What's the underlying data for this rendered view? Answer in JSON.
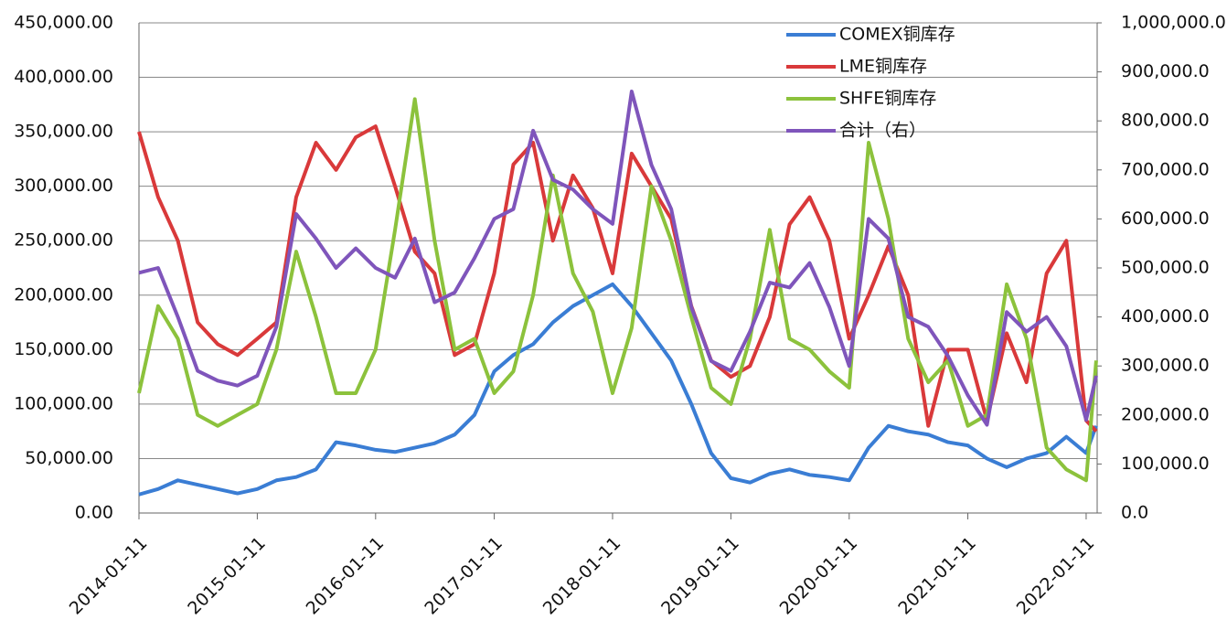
{
  "chart_data": {
    "type": "line",
    "x": [
      "2014-01-11",
      "2014-03-11",
      "2014-05-11",
      "2014-07-11",
      "2014-09-11",
      "2014-11-11",
      "2015-01-11",
      "2015-03-11",
      "2015-05-11",
      "2015-07-11",
      "2015-09-11",
      "2015-11-11",
      "2016-01-11",
      "2016-03-11",
      "2016-05-11",
      "2016-07-11",
      "2016-09-11",
      "2016-11-11",
      "2017-01-11",
      "2017-03-11",
      "2017-05-11",
      "2017-07-11",
      "2017-09-11",
      "2017-11-11",
      "2018-01-11",
      "2018-03-11",
      "2018-05-11",
      "2018-07-11",
      "2018-09-11",
      "2018-11-11",
      "2019-01-11",
      "2019-03-11",
      "2019-05-11",
      "2019-07-11",
      "2019-09-11",
      "2019-11-11",
      "2020-01-11",
      "2020-03-11",
      "2020-05-11",
      "2020-07-11",
      "2020-09-11",
      "2020-11-11",
      "2021-01-11",
      "2021-03-11",
      "2021-05-11",
      "2021-07-11",
      "2021-09-11",
      "2021-11-11",
      "2022-01-11",
      "2022-02-11"
    ],
    "series": [
      {
        "name": "COMEX铜库存",
        "color": "#3a7dd4",
        "values": [
          17000,
          22000,
          30000,
          26000,
          22000,
          18000,
          22000,
          30000,
          33000,
          40000,
          65000,
          62000,
          58000,
          56000,
          60000,
          64000,
          72000,
          90000,
          130000,
          145000,
          155000,
          175000,
          190000,
          200000,
          210000,
          190000,
          165000,
          140000,
          100000,
          55000,
          32000,
          28000,
          36000,
          40000,
          35000,
          33000,
          30000,
          60000,
          80000,
          75000,
          72000,
          65000,
          62000,
          50000,
          42000,
          50000,
          55000,
          70000,
          55000,
          80000
        ]
      },
      {
        "name": "LME铜库存",
        "color": "#d9393a",
        "values": [
          350000,
          290000,
          250000,
          175000,
          155000,
          145000,
          160000,
          175000,
          290000,
          340000,
          315000,
          345000,
          355000,
          300000,
          240000,
          220000,
          145000,
          155000,
          220000,
          320000,
          340000,
          250000,
          310000,
          280000,
          220000,
          330000,
          300000,
          270000,
          190000,
          140000,
          125000,
          135000,
          180000,
          265000,
          290000,
          250000,
          160000,
          200000,
          245000,
          200000,
          80000,
          150000,
          150000,
          85000,
          165000,
          120000,
          220000,
          250000,
          85000,
          75000
        ]
      },
      {
        "name": "SHFE铜库存",
        "color": "#8cc23c",
        "values": [
          110000,
          190000,
          160000,
          90000,
          80000,
          90000,
          100000,
          150000,
          240000,
          180000,
          110000,
          110000,
          150000,
          260000,
          380000,
          250000,
          150000,
          160000,
          110000,
          130000,
          200000,
          310000,
          220000,
          185000,
          110000,
          170000,
          300000,
          250000,
          180000,
          115000,
          100000,
          160000,
          260000,
          160000,
          150000,
          130000,
          115000,
          340000,
          270000,
          160000,
          120000,
          140000,
          80000,
          90000,
          210000,
          160000,
          60000,
          40000,
          30000,
          140000
        ]
      },
      {
        "name": "合计（右）",
        "color": "#7f55bb",
        "axis": "y2",
        "values": [
          490000,
          500000,
          400000,
          290000,
          270000,
          260000,
          280000,
          380000,
          610000,
          560000,
          500000,
          540000,
          500000,
          480000,
          560000,
          430000,
          450000,
          520000,
          600000,
          620000,
          780000,
          680000,
          660000,
          620000,
          590000,
          860000,
          710000,
          620000,
          420000,
          310000,
          290000,
          370000,
          470000,
          460000,
          510000,
          420000,
          300000,
          600000,
          560000,
          400000,
          380000,
          320000,
          240000,
          180000,
          410000,
          370000,
          400000,
          340000,
          190000,
          280000
        ]
      }
    ],
    "xlim": [
      "2014-01-11",
      "2022-02-14"
    ],
    "xticks": [
      "2014-01-11",
      "2015-01-11",
      "2016-01-11",
      "2017-01-11",
      "2018-01-11",
      "2019-01-11",
      "2020-01-11",
      "2021-01-11",
      "2022-01-11"
    ],
    "ylim": [
      0,
      450000
    ],
    "yticks": [
      {
        "value": 0,
        "label": "0.00"
      },
      {
        "value": 50000,
        "label": "50,000.00"
      },
      {
        "value": 100000,
        "label": "100,000.00"
      },
      {
        "value": 150000,
        "label": "150,000.00"
      },
      {
        "value": 200000,
        "label": "200,000.00"
      },
      {
        "value": 250000,
        "label": "250,000.00"
      },
      {
        "value": 300000,
        "label": "300,000.00"
      },
      {
        "value": 350000,
        "label": "350,000.00"
      },
      {
        "value": 400000,
        "label": "400,000.00"
      },
      {
        "value": 450000,
        "label": "450,000.00"
      }
    ],
    "y2lim": [
      0,
      1000000
    ],
    "y2ticks": [
      {
        "value": 0,
        "label": "0.0"
      },
      {
        "value": 100000,
        "label": "100,000.0"
      },
      {
        "value": 200000,
        "label": "200,000.0"
      },
      {
        "value": 300000,
        "label": "300,000.0"
      },
      {
        "value": 400000,
        "label": "400,000.0"
      },
      {
        "value": 500000,
        "label": "500,000.0"
      },
      {
        "value": 600000,
        "label": "600,000.0"
      },
      {
        "value": 700000,
        "label": "700,000.0"
      },
      {
        "value": 800000,
        "label": "800,000.0"
      },
      {
        "value": 900000,
        "label": "900,000.0"
      },
      {
        "value": 1000000,
        "label": "1,000,000.0"
      }
    ],
    "grid": true
  }
}
